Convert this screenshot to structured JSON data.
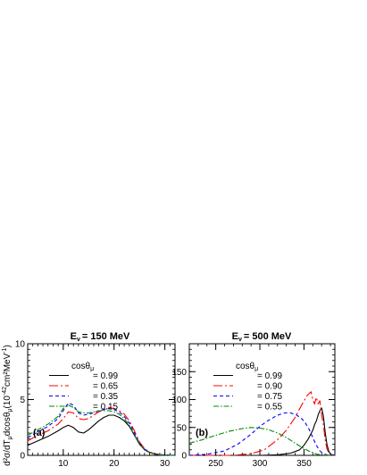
{
  "ylabel_main": "d²σ/dT",
  "ylabel_mu1": "μ",
  "ylabel_mid": "dcosθ",
  "ylabel_mu2": "μ",
  "ylabel_units": "(10",
  "ylabel_exp": "-42",
  "ylabel_units2": "cm²MeV",
  "ylabel_exp2": "-1",
  "ylabel_close": ")",
  "chart_data": [
    {
      "type": "line",
      "panel_label": "(a)",
      "title": "E = 150 MeV",
      "title_symbol": "E",
      "title_sub": "ν",
      "title_rest": "= 150 MeV",
      "xlim": [
        3,
        32
      ],
      "ylim": [
        0,
        10
      ],
      "xticks": [
        10,
        20,
        30
      ],
      "yticks": [
        0,
        5,
        10
      ],
      "legend_header": "cosθ",
      "legend_header_sub": "μ",
      "series": [
        {
          "name": "= 0.99",
          "color": "#000000",
          "dash": "none",
          "x": [
            3,
            5,
            7,
            9,
            10,
            11,
            12,
            13,
            14,
            15,
            16,
            17,
            18,
            19,
            20,
            21,
            22,
            23,
            24,
            25,
            26,
            27,
            28,
            29,
            30,
            32
          ],
          "y": [
            0.9,
            1.3,
            1.7,
            2.2,
            2.5,
            2.7,
            2.5,
            2.1,
            2.0,
            2.3,
            2.7,
            3.1,
            3.4,
            3.6,
            3.6,
            3.4,
            3.1,
            2.6,
            1.8,
            1.0,
            0.5,
            0.25,
            0.12,
            0.05,
            0.02,
            0
          ]
        },
        {
          "name": "= 0.65",
          "color": "#ff0000",
          "dash": "10,3,2,3",
          "x": [
            3,
            5,
            7,
            9,
            10,
            11,
            12,
            13,
            14,
            15,
            16,
            17,
            18,
            19,
            20,
            21,
            22,
            23,
            24,
            25,
            26,
            27,
            28,
            29,
            30,
            32
          ],
          "y": [
            1.3,
            1.8,
            2.2,
            2.8,
            3.3,
            3.9,
            3.8,
            3.3,
            3.2,
            3.3,
            3.6,
            3.9,
            4.1,
            4.3,
            4.2,
            4.0,
            3.7,
            3.1,
            2.2,
            1.2,
            0.6,
            0.3,
            0.15,
            0.08,
            0.03,
            0
          ]
        },
        {
          "name": "= 0.35",
          "color": "#0000ff",
          "dash": "4,3",
          "x": [
            3,
            5,
            7,
            9,
            10,
            11,
            12,
            13,
            14,
            15,
            16,
            17,
            18,
            19,
            20,
            21,
            22,
            23,
            24,
            25,
            26,
            27,
            28,
            29,
            30,
            32
          ],
          "y": [
            1.6,
            2.1,
            2.6,
            3.3,
            4.0,
            4.7,
            4.5,
            3.8,
            3.6,
            3.7,
            3.8,
            4.0,
            4.1,
            4.2,
            4.1,
            3.9,
            3.5,
            2.9,
            2.0,
            1.1,
            0.55,
            0.28,
            0.13,
            0.07,
            0.03,
            0
          ]
        },
        {
          "name": "= 0.15",
          "color": "#008800",
          "dash": "6,2,1.5,2",
          "x": [
            3,
            5,
            7,
            9,
            10,
            11,
            12,
            13,
            14,
            15,
            16,
            17,
            18,
            19,
            20,
            21,
            22,
            23,
            24,
            25,
            26,
            27,
            28,
            29,
            30,
            32
          ],
          "y": [
            1.8,
            2.3,
            2.8,
            3.5,
            4.2,
            4.5,
            4.3,
            3.9,
            3.8,
            3.8,
            3.9,
            4.0,
            4.0,
            4.0,
            3.9,
            3.7,
            3.3,
            2.7,
            1.8,
            1.0,
            0.5,
            0.25,
            0.12,
            0.06,
            0.02,
            0
          ]
        }
      ]
    },
    {
      "type": "line",
      "panel_label": "(b)",
      "title": "E = 500 MeV",
      "title_symbol": "E",
      "title_sub": "ν",
      "title_rest": "= 500 MeV",
      "xlim": [
        220,
        385
      ],
      "ylim": [
        0,
        200
      ],
      "xticks": [
        250,
        300,
        350
      ],
      "yticks": [
        0,
        50,
        100,
        150
      ],
      "legend_header": "cosθ",
      "legend_header_sub": "μ",
      "series": [
        {
          "name": "= 0.99",
          "color": "#000000",
          "dash": "none",
          "x": [
            220,
            260,
            300,
            320,
            335,
            345,
            350,
            355,
            360,
            362,
            364,
            366,
            368,
            370,
            372,
            374,
            376,
            378,
            380,
            385
          ],
          "y": [
            0,
            0,
            0,
            1,
            4,
            10,
            18,
            30,
            45,
            55,
            62,
            72,
            80,
            85,
            70,
            42,
            20,
            8,
            2,
            0
          ]
        },
        {
          "name": "= 0.90",
          "color": "#ff0000",
          "dash": "10,3,2,3",
          "x": [
            220,
            250,
            270,
            290,
            305,
            320,
            330,
            340,
            348,
            354,
            358,
            360,
            362,
            364,
            366,
            368,
            370,
            372,
            374,
            376,
            378,
            380,
            385
          ],
          "y": [
            0,
            0,
            0,
            3,
            10,
            28,
            45,
            68,
            92,
            108,
            114,
            100,
            92,
            104,
            92,
            98,
            72,
            55,
            28,
            12,
            5,
            1,
            0
          ]
        },
        {
          "name": "= 0.75",
          "color": "#0000ff",
          "dash": "4,3",
          "x": [
            220,
            240,
            260,
            275,
            290,
            300,
            310,
            320,
            328,
            335,
            342,
            348,
            352,
            356,
            360,
            364,
            368,
            372,
            376,
            380,
            385
          ],
          "y": [
            0,
            2,
            8,
            20,
            38,
            52,
            63,
            72,
            76,
            76,
            72,
            65,
            57,
            46,
            32,
            18,
            8,
            3,
            1,
            0,
            0
          ]
        },
        {
          "name": "= 0.55",
          "color": "#008800",
          "dash": "6,2,1.5,2",
          "x": [
            220,
            235,
            250,
            265,
            280,
            290,
            300,
            310,
            320,
            330,
            340,
            348,
            355,
            360,
            365,
            370,
            375,
            380,
            385
          ],
          "y": [
            22,
            28,
            36,
            43,
            48,
            50,
            49,
            46,
            40,
            32,
            22,
            14,
            8,
            5,
            2,
            1,
            0.5,
            0,
            0
          ]
        }
      ]
    }
  ]
}
